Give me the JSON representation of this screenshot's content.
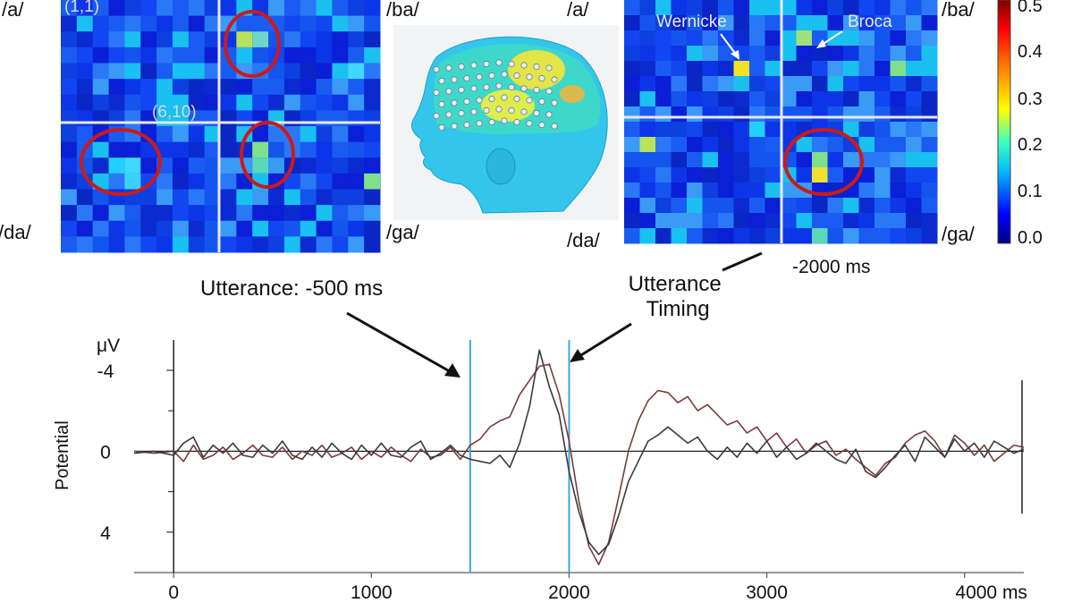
{
  "heatmap_left": {
    "top_labels": [
      "/a/",
      "/ba/"
    ],
    "bottom_labels": [
      "/da/",
      "/ga/"
    ],
    "coord_start": "(1,1)",
    "coord_mid": "(6,10)",
    "caption": "Utterance: -500 ms"
  },
  "heatmap_right": {
    "top_labels": [
      "/a/",
      "/ba/"
    ],
    "bottom_labels": [
      "/da/",
      "/ga/"
    ],
    "region_a": "Wernicke",
    "region_b": "Broca",
    "caption": "-2000 ms"
  },
  "colorbar": {
    "ticks": [
      "0.5",
      "0.4",
      "0.3",
      "0.2",
      "0.1",
      "0.0"
    ],
    "colors": [
      "#000080",
      "#0000ff",
      "#00bfff",
      "#40ffbf",
      "#ffff00",
      "#ff8000",
      "#ff0000",
      "#800000"
    ]
  },
  "annotations": {
    "utterance_timing": "Utterance\nTiming"
  },
  "chart_data": {
    "type": "line",
    "title": "",
    "ylabel": "Potential",
    "yunit": "μV",
    "xunit": "ms",
    "x_ticks": [
      "0",
      "1000",
      "2000",
      "3000",
      "4000 ms"
    ],
    "x_tick_values": [
      0,
      1000,
      2000,
      3000,
      4000
    ],
    "y_ticks": [
      "-4",
      "0",
      "4"
    ],
    "y_tick_values": [
      -4,
      0,
      4
    ],
    "xlim": [
      -200,
      4300
    ],
    "ylim": [
      6,
      -5.5
    ],
    "y_inverted": true,
    "vertical_markers": [
      1500,
      2000
    ],
    "series": [
      {
        "color": "#7a3b3b",
        "x": [
          -200,
          -100,
          0,
          50,
          100,
          150,
          200,
          250,
          300,
          350,
          400,
          450,
          500,
          550,
          600,
          650,
          700,
          750,
          800,
          850,
          900,
          950,
          1000,
          1050,
          1100,
          1150,
          1200,
          1250,
          1300,
          1350,
          1400,
          1450,
          1500,
          1550,
          1600,
          1650,
          1700,
          1750,
          1800,
          1850,
          1900,
          1950,
          2000,
          2050,
          2100,
          2150,
          2200,
          2250,
          2300,
          2350,
          2400,
          2450,
          2500,
          2550,
          2600,
          2650,
          2700,
          2750,
          2800,
          2850,
          2900,
          2950,
          3000,
          3050,
          3100,
          3150,
          3200,
          3250,
          3300,
          3350,
          3400,
          3450,
          3500,
          3550,
          3600,
          3650,
          3700,
          3750,
          3800,
          3850,
          3900,
          3950,
          4000,
          4050,
          4100,
          4150,
          4200,
          4250,
          4300
        ],
        "y": [
          0,
          0.1,
          0,
          0.5,
          -0.3,
          0.4,
          0.2,
          -0.2,
          0.4,
          0.1,
          -0.3,
          0.2,
          0.3,
          -0.2,
          0.4,
          0,
          0.2,
          -0.3,
          0.3,
          0.1,
          -0.2,
          0.4,
          0,
          0.3,
          -0.2,
          0.2,
          0.5,
          -0.1,
          0.3,
          0.2,
          -0.2,
          0.4,
          -0.3,
          -0.6,
          -1.2,
          -1.5,
          -1.7,
          -2.8,
          -3.5,
          -4.2,
          -4.3,
          -2.8,
          -0.5,
          2.5,
          4.7,
          5.6,
          4.5,
          2.3,
          0,
          -1.5,
          -2.5,
          -3,
          -2.9,
          -2.4,
          -2.7,
          -2,
          -2.3,
          -1.8,
          -1.3,
          -1.5,
          -0.9,
          -1.2,
          -0.5,
          -0.9,
          -0.2,
          -0.6,
          0.1,
          -0.3,
          -0.5,
          0.2,
          -0.1,
          0.4,
          0.8,
          1.2,
          0.6,
          0.3,
          -0.4,
          -0.8,
          -1,
          -0.5,
          0.3,
          -0.8,
          -0.4,
          0.2,
          -0.3,
          0.5,
          0.1,
          -0.3,
          -0.2
        ]
      },
      {
        "color": "#3a3a3a",
        "x": [
          -200,
          -100,
          0,
          50,
          100,
          150,
          200,
          250,
          300,
          350,
          400,
          450,
          500,
          550,
          600,
          650,
          700,
          750,
          800,
          850,
          900,
          950,
          1000,
          1050,
          1100,
          1150,
          1200,
          1250,
          1300,
          1350,
          1400,
          1450,
          1500,
          1550,
          1600,
          1650,
          1700,
          1750,
          1800,
          1850,
          1900,
          1950,
          2000,
          2050,
          2100,
          2150,
          2200,
          2250,
          2300,
          2350,
          2400,
          2450,
          2500,
          2550,
          2600,
          2650,
          2700,
          2750,
          2800,
          2850,
          2900,
          2950,
          3000,
          3050,
          3100,
          3150,
          3200,
          3250,
          3300,
          3350,
          3400,
          3450,
          3500,
          3550,
          3600,
          3650,
          3700,
          3750,
          3800,
          3850,
          3900,
          3950,
          4000,
          4050,
          4100,
          4150,
          4200,
          4250,
          4300
        ],
        "y": [
          0.1,
          0,
          0.2,
          -0.4,
          -0.7,
          0.3,
          -0.3,
          0.1,
          -0.4,
          0.2,
          0.3,
          -0.3,
          0.1,
          -0.5,
          0.2,
          0.4,
          -0.2,
          0.3,
          -0.4,
          0.1,
          0.4,
          -0.3,
          0.2,
          -0.4,
          0.2,
          0.3,
          -0.2,
          -0.5,
          0.4,
          0.1,
          -0.3,
          0.2,
          0.4,
          0.5,
          0.6,
          0.2,
          0.8,
          -0.4,
          -2.2,
          -5,
          -3.2,
          -1.8,
          1,
          3,
          4.5,
          5.1,
          4.6,
          3.2,
          1.5,
          0.5,
          -0.5,
          -0.8,
          -1.2,
          -0.8,
          -0.4,
          -0.7,
          0,
          0.4,
          -0.2,
          0.3,
          -0.4,
          0.1,
          -0.5,
          0.3,
          -0.2,
          0.4,
          0.1,
          -0.4,
          0,
          0.4,
          0.6,
          -0.1,
          1,
          1.3,
          0.8,
          0.2,
          -0.3,
          0.5,
          -0.7,
          -0.2,
          0.3,
          -0.6,
          0,
          -0.4,
          0.3,
          -0.5,
          -0.2,
          0.1,
          -0.1
        ]
      }
    ]
  }
}
